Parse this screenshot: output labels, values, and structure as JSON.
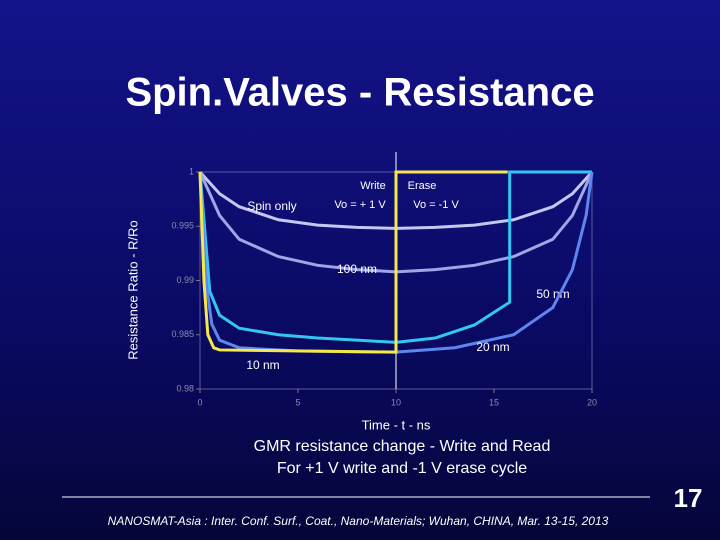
{
  "chart_data": {
    "type": "line",
    "title": "Spin.Valves - Resistance",
    "y_label": "Resistance Ratio - R/Ro",
    "x_label": "Time - t - ns",
    "captions": [
      "GMR resistance change - Write and Read",
      "For +1 V write and -1 V erase cycle"
    ],
    "annotations": [
      "Write",
      "Vo = + 1 V",
      "Erase",
      "Vo = -1 V"
    ],
    "footer": "NANOSMAT-Asia : Inter. Conf. Surf., Coat., Nano-Materials; Wuhan, CHINA, Mar. 13-15, 2013",
    "page_number": "17",
    "divider_x": 10,
    "xlim": [
      0,
      20
    ],
    "xticks": [
      0,
      5,
      10,
      15,
      20
    ],
    "ylim": [
      0.98,
      1
    ],
    "yticks": [
      1,
      0.995,
      0.99,
      0.985,
      0.98
    ],
    "series": [
      {
        "name": "Spin only",
        "color": "#c4c8f0",
        "x": [
          0,
          1,
          2,
          4,
          6,
          8,
          10,
          12,
          14,
          16,
          18,
          19,
          20
        ],
        "values": [
          1,
          0.998,
          0.9968,
          0.9956,
          0.9951,
          0.9949,
          0.9948,
          0.9949,
          0.9951,
          0.9956,
          0.9968,
          0.998,
          1
        ]
      },
      {
        "name": "100 nm",
        "color": "#9ea6e6",
        "x": [
          0,
          1,
          2,
          4,
          6,
          8,
          10,
          12,
          14,
          16,
          18,
          19,
          20
        ],
        "values": [
          1,
          0.996,
          0.9938,
          0.9922,
          0.9914,
          0.991,
          0.9908,
          0.991,
          0.9914,
          0.9922,
          0.9938,
          0.996,
          1
        ]
      },
      {
        "name": "50 nm",
        "color": "#33c6f0",
        "x": [
          0,
          0.5,
          1,
          2,
          4,
          6,
          8,
          10,
          12,
          14,
          15.8,
          15.8,
          20
        ],
        "values": [
          1,
          0.989,
          0.9868,
          0.9856,
          0.985,
          0.9847,
          0.9845,
          0.9843,
          0.9847,
          0.9859,
          0.988,
          1,
          1
        ]
      },
      {
        "name": "20 nm",
        "color": "#5f86f0",
        "x": [
          0,
          0.3,
          0.6,
          1,
          2,
          5,
          10,
          13,
          16,
          18,
          19,
          19.7,
          20
        ],
        "values": [
          1,
          0.99,
          0.986,
          0.9845,
          0.9838,
          0.9835,
          0.9834,
          0.9838,
          0.985,
          0.9875,
          0.991,
          0.996,
          1
        ]
      },
      {
        "name": "10 nm",
        "color": "#f4e84a",
        "x": [
          0,
          0.2,
          0.4,
          0.7,
          1,
          10,
          10,
          15.7
        ],
        "values": [
          1,
          0.99,
          0.985,
          0.9838,
          0.9836,
          0.9834,
          1,
          1
        ]
      }
    ]
  }
}
